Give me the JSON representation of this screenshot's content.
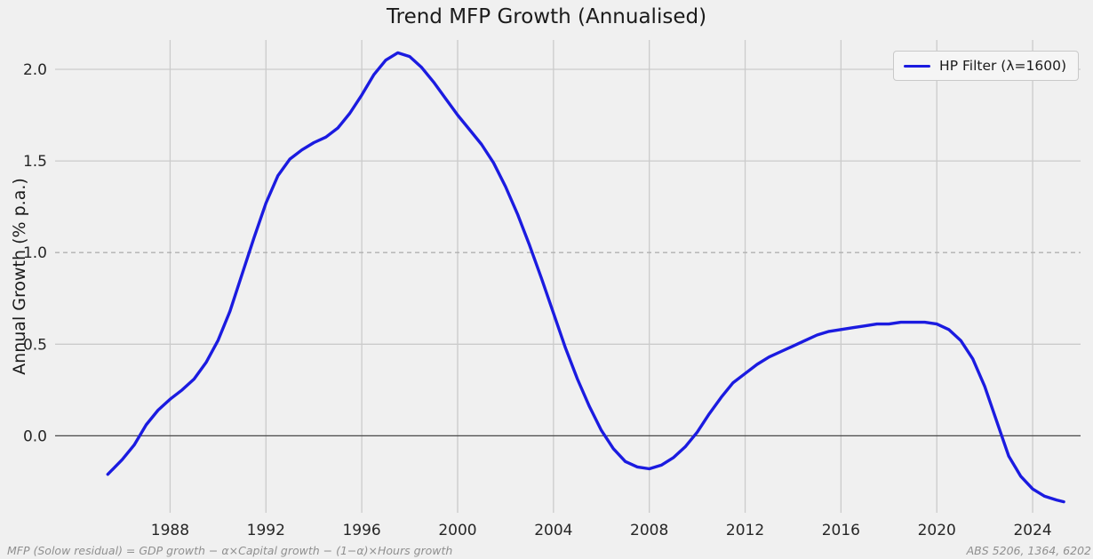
{
  "colors": {
    "line": "#1b1be0",
    "background": "#f0f0f0",
    "grid": "#cbcbcb",
    "zero_line": "#4a4a4a",
    "reference_line": "#b0b0b0",
    "text": "#262626",
    "muted": "#8f8f8f",
    "legend_bg": "#f5f5f5"
  },
  "footer": {
    "left": "MFP (Solow residual) = GDP growth − α×Capital growth − (1−α)×Hours growth",
    "right": "ABS 5206, 1364, 6202"
  },
  "chart_data": {
    "type": "line",
    "title": "Trend MFP Growth (Annualised)",
    "xlabel": "",
    "ylabel": "Annual Growth (% p.a.)",
    "xlim": [
      1983.2,
      2026.0
    ],
    "ylim": [
      -0.42,
      2.16
    ],
    "xticks": [
      1988,
      1992,
      1996,
      2000,
      2004,
      2008,
      2012,
      2016,
      2020,
      2024
    ],
    "yticks": [
      0.0,
      0.5,
      1.0,
      1.5,
      2.0
    ],
    "ytick_labels": [
      "0.0",
      "0.5",
      "1.0",
      "1.5",
      "2.0"
    ],
    "grid": true,
    "zero_line": true,
    "reference_line_y": 1.0,
    "legend_position": "upper right",
    "series": [
      {
        "name": "HP Filter (λ=1600)",
        "color": "#1b1be0",
        "x": [
          1985.4,
          1986,
          1986.5,
          1987,
          1987.5,
          1988,
          1988.5,
          1989,
          1989.5,
          1990,
          1990.5,
          1991,
          1991.5,
          1992,
          1992.5,
          1993,
          1993.5,
          1994,
          1994.5,
          1995,
          1995.5,
          1996,
          1996.5,
          1997,
          1997.5,
          1998,
          1998.5,
          1999,
          1999.5,
          2000,
          2000.5,
          2001,
          2001.5,
          2002,
          2002.5,
          2003,
          2003.5,
          2004,
          2004.5,
          2005,
          2005.5,
          2006,
          2006.5,
          2007,
          2007.5,
          2008,
          2008.5,
          2009,
          2009.5,
          2010,
          2010.5,
          2011,
          2011.5,
          2012,
          2012.5,
          2013,
          2013.5,
          2014,
          2014.5,
          2015,
          2015.5,
          2016,
          2016.5,
          2017,
          2017.5,
          2018,
          2018.5,
          2019,
          2019.5,
          2020,
          2020.5,
          2021,
          2021.5,
          2022,
          2022.5,
          2023,
          2023.5,
          2024,
          2024.5,
          2025,
          2025.3
        ],
        "y": [
          -0.21,
          -0.13,
          -0.05,
          0.06,
          0.14,
          0.2,
          0.25,
          0.31,
          0.4,
          0.52,
          0.68,
          0.88,
          1.08,
          1.27,
          1.42,
          1.51,
          1.56,
          1.6,
          1.63,
          1.68,
          1.76,
          1.86,
          1.97,
          2.05,
          2.09,
          2.07,
          2.01,
          1.93,
          1.84,
          1.75,
          1.67,
          1.59,
          1.49,
          1.36,
          1.21,
          1.04,
          0.86,
          0.67,
          0.48,
          0.31,
          0.16,
          0.03,
          -0.07,
          -0.14,
          -0.17,
          -0.18,
          -0.16,
          -0.12,
          -0.06,
          0.02,
          0.12,
          0.21,
          0.29,
          0.34,
          0.39,
          0.43,
          0.46,
          0.49,
          0.52,
          0.55,
          0.57,
          0.58,
          0.59,
          0.6,
          0.61,
          0.61,
          0.62,
          0.62,
          0.62,
          0.61,
          0.58,
          0.52,
          0.42,
          0.27,
          0.08,
          -0.11,
          -0.22,
          -0.29,
          -0.33,
          -0.35,
          -0.36
        ]
      }
    ]
  }
}
